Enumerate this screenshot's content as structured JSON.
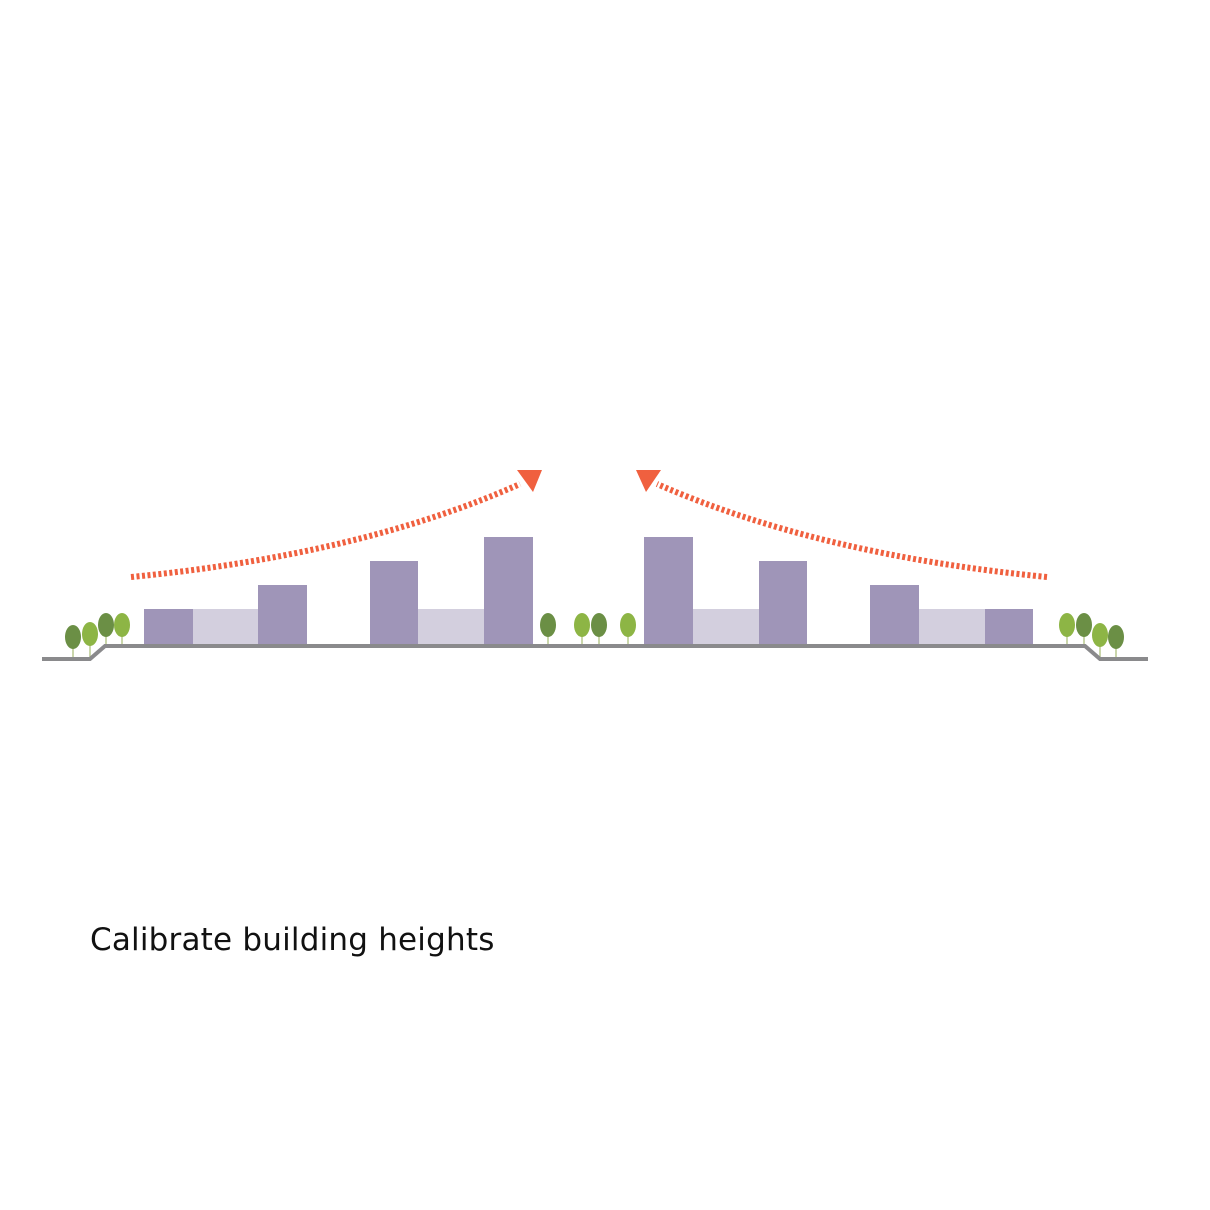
{
  "caption": "Calibrate building heights",
  "colors": {
    "building_tall": "#9f95b8",
    "building_low": "#d3cfde",
    "ground": "#8a8a8c",
    "tree_dark": "#6b8f45",
    "tree_light": "#8db545",
    "arrow": "#f0603f"
  }
}
